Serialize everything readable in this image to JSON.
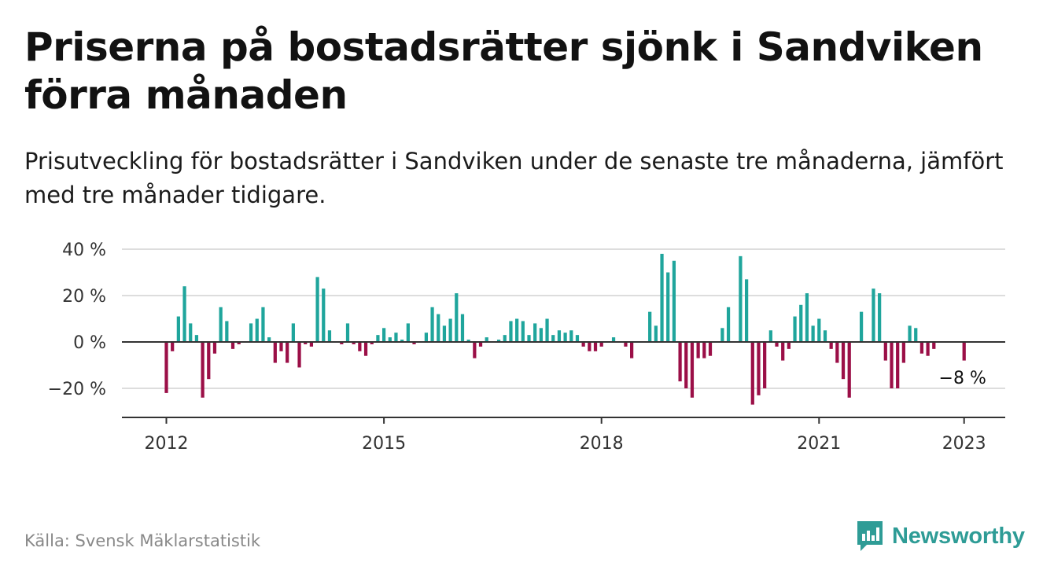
{
  "header": {
    "title": "Priserna på bostadsrätter sjönk i Sandviken förra månaden",
    "subtitle": "Prisutveckling för bostadsrätter i Sandviken under de senaste tre månaderna, jämfört med tre månader tidigare."
  },
  "footer": {
    "source": "Källa: Svensk Mäklarstatistik",
    "brand": "Newsworthy"
  },
  "colors": {
    "positive": "#1fa59c",
    "negative": "#9b0f47",
    "brand": "#2e9c96"
  },
  "chart_data": {
    "type": "bar",
    "ylim": [
      -32,
      40
    ],
    "yticks": [
      {
        "value": 40,
        "label": "40 %"
      },
      {
        "value": 20,
        "label": "20 %"
      },
      {
        "value": 0,
        "label": "0 %"
      },
      {
        "value": -20,
        "label": "−20 %"
      }
    ],
    "xticks": [
      {
        "year": 2012,
        "label": "2012"
      },
      {
        "year": 2015,
        "label": "2015"
      },
      {
        "year": 2018,
        "label": "2018"
      },
      {
        "year": 2021,
        "label": "2021"
      },
      {
        "year": 2023,
        "label": "2023"
      }
    ],
    "x_start": "2012-01",
    "annotation": {
      "label": "−8 %",
      "value": -8
    },
    "values": [
      -22,
      -4,
      11,
      24,
      8,
      3,
      -24,
      -16,
      -5,
      15,
      9,
      -3,
      -1,
      0,
      8,
      10,
      15,
      2,
      -9,
      -4,
      -9,
      8,
      -11,
      -1,
      -2,
      28,
      23,
      5,
      0,
      -1,
      8,
      -1,
      -4,
      -6,
      -1,
      3,
      6,
      2,
      4,
      1,
      8,
      -1,
      0,
      4,
      15,
      12,
      7,
      10,
      21,
      12,
      1,
      -7,
      -2,
      2,
      0,
      1,
      3,
      9,
      10,
      9,
      3,
      8,
      6,
      10,
      3,
      5,
      4,
      5,
      3,
      -2,
      -4,
      -4,
      -2,
      0,
      2,
      0,
      -2,
      -7,
      0,
      0,
      13,
      7,
      38,
      30,
      35,
      -17,
      -20,
      -24,
      -7,
      -7,
      -6,
      0,
      6,
      15,
      0,
      37,
      27,
      -27,
      -23,
      -20,
      5,
      -2,
      -8,
      -3,
      11,
      16,
      21,
      7,
      10,
      5,
      -3,
      -9,
      -16,
      -24,
      0,
      13,
      0,
      23,
      21,
      -8,
      -20,
      -20,
      -9,
      7,
      6,
      -5,
      -6,
      -3,
      0,
      0,
      0,
      0,
      -8
    ]
  }
}
